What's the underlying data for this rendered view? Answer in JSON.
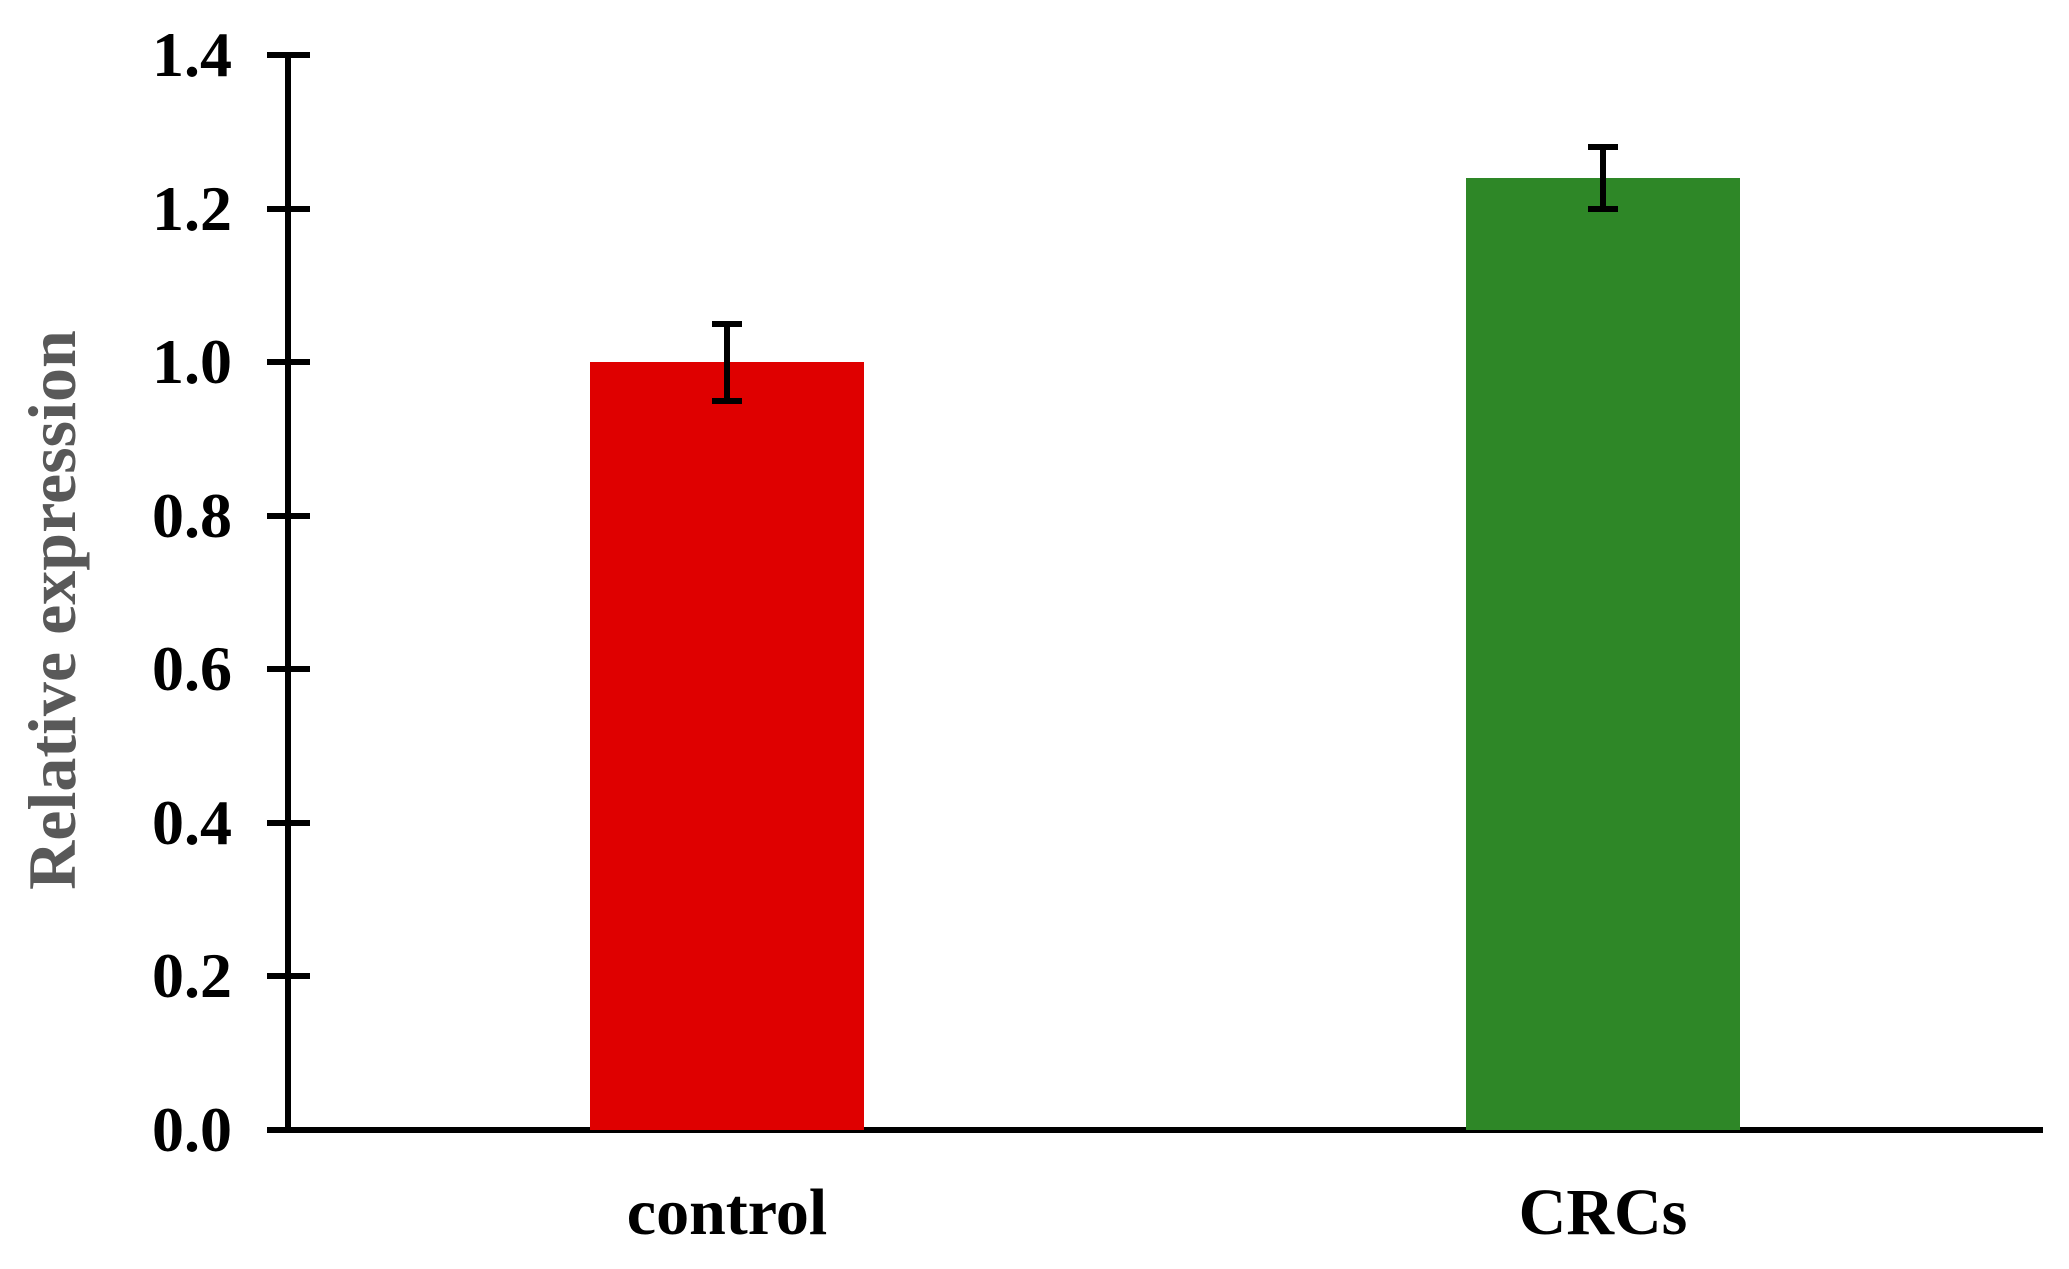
{
  "figure": {
    "background": "#ffffff",
    "axis_color": "#000000",
    "tick_label_color": "#000000",
    "category_label_color": "#000000",
    "ylabel_color": "#595959"
  },
  "chart_data": {
    "type": "bar",
    "title": "",
    "xlabel": "",
    "ylabel": "Relative expression",
    "categories": [
      "control",
      "CRCs"
    ],
    "values": [
      1.0,
      1.24
    ],
    "errors": [
      0.05,
      0.04
    ],
    "bar_colors": [
      "#df0000",
      "#2e8727"
    ],
    "ylim": [
      0,
      1.4
    ],
    "ytick_interval": 0.2,
    "ytick_labels": [
      "0.0",
      "0.2",
      "0.4",
      "0.6",
      "0.8",
      "1.0",
      "1.2",
      "1.4"
    ],
    "error_bars": true,
    "grid": false,
    "legend": "none"
  }
}
